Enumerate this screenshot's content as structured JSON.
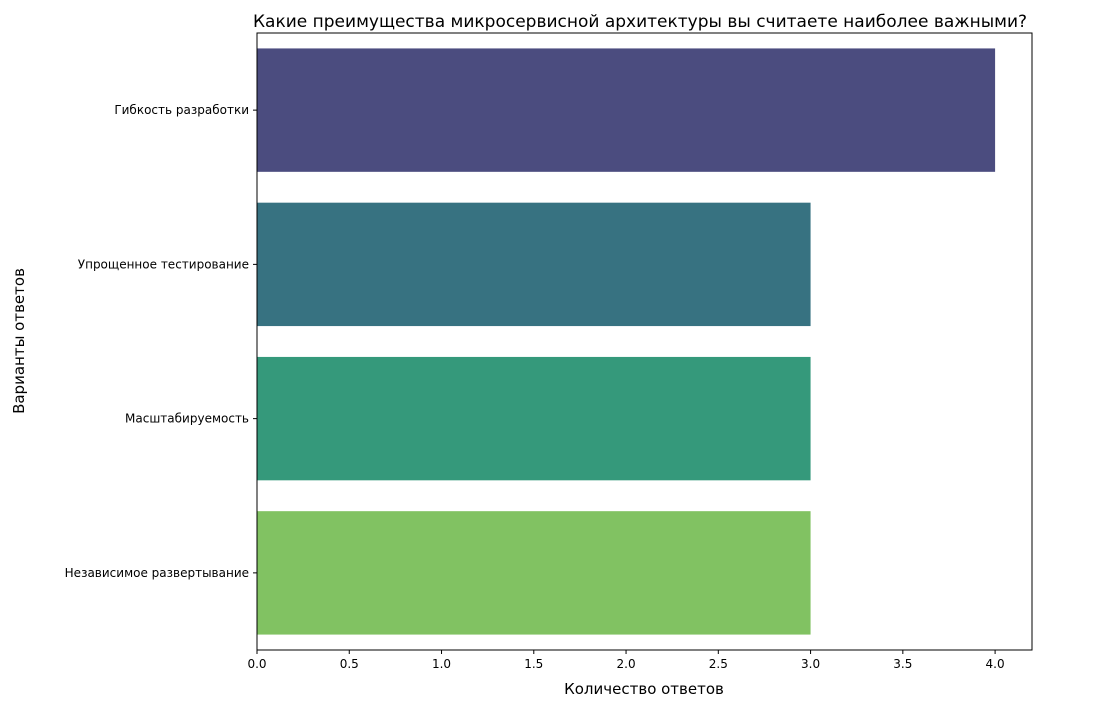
{
  "chart_data": {
    "type": "bar",
    "orientation": "horizontal",
    "title": "Какие преимущества микросервисной архитектуры вы считаете наиболее важными?",
    "xlabel": "Количество ответов",
    "ylabel": "Варианты ответов",
    "categories": [
      "Гибкость разработки",
      "Упрощенное тестирование",
      "Масштабируемость",
      "Независимое развертывание"
    ],
    "values": [
      4,
      3,
      3,
      3
    ],
    "colors": [
      "#4b4c7f",
      "#377281",
      "#35997b",
      "#81c262"
    ],
    "xlim": [
      0,
      4.2
    ],
    "xticks": [
      0,
      0.5,
      1,
      1.5,
      2,
      2.5,
      3,
      3.5,
      4
    ],
    "xtick_labels": [
      "0.0",
      "0.5",
      "1.0",
      "1.5",
      "2.0",
      "2.5",
      "3.0",
      "3.5",
      "4.0"
    ],
    "grid": false,
    "legend": "none"
  }
}
